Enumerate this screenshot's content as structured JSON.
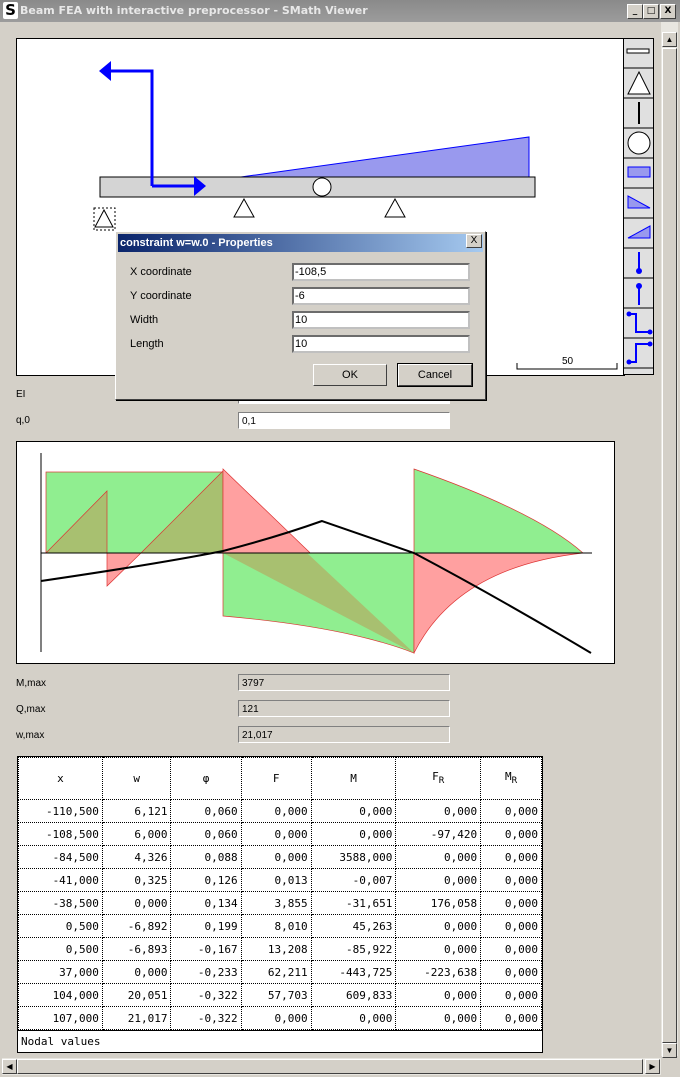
{
  "window": {
    "title": "Beam FEA with interactive preprocessor - SMath Viewer",
    "logo": "S",
    "minimize": "_",
    "maximize": "□",
    "close": "X"
  },
  "toolbar": {
    "tools": [
      "beam-icon",
      "support-triangle-icon",
      "hinge-line-icon",
      "joint-circle-icon",
      "uniform-load-icon",
      "decreasing-load-icon",
      "increasing-load-icon",
      "force-down-icon",
      "force-up-icon",
      "moment-cw-icon",
      "moment-ccw-icon"
    ]
  },
  "preprocessor": {
    "scale_label": "50"
  },
  "dialog": {
    "title": "constraint w=w.0 - Properties",
    "close": "X",
    "fields": [
      {
        "label": "X coordinate",
        "value": "-108,5"
      },
      {
        "label": "Y coordinate",
        "value": "-6"
      },
      {
        "label": "Width",
        "value": "10"
      },
      {
        "label": "Length",
        "value": "10"
      }
    ],
    "ok": "OK",
    "cancel": "Cancel"
  },
  "inputs": {
    "ei_label": "EI",
    "ei_value": "",
    "q0_label": "q,0",
    "q0_value": "0,1"
  },
  "results": {
    "mmax_label": "M,max",
    "mmax_value": "3797",
    "qmax_label": "Q,max",
    "qmax_value": "121",
    "wmax_label": "w,max",
    "wmax_value": "21,017"
  },
  "colors": {
    "load": "#0000ff",
    "positive": "#90ee90",
    "negative": "#ffa0a0",
    "dialog_title": "#0a246a"
  },
  "table": {
    "headers": [
      "x",
      "w",
      "φ",
      "F",
      "M",
      "F",
      "M"
    ],
    "header_subs": [
      "",
      "",
      "",
      "",
      "",
      "R",
      "R"
    ],
    "rows": [
      [
        "-110,500",
        "6,121",
        "0,060",
        "0,000",
        "0,000",
        "0,000",
        "0,000"
      ],
      [
        "-108,500",
        "6,000",
        "0,060",
        "0,000",
        "0,000",
        "-97,420",
        "0,000"
      ],
      [
        "-84,500",
        "4,326",
        "0,088",
        "0,000",
        "3588,000",
        "0,000",
        "0,000"
      ],
      [
        "-41,000",
        "0,325",
        "0,126",
        "0,013",
        "-0,007",
        "0,000",
        "0,000"
      ],
      [
        "-38,500",
        "0,000",
        "0,134",
        "3,855",
        "-31,651",
        "176,058",
        "0,000"
      ],
      [
        "0,500",
        "-6,892",
        "0,199",
        "8,010",
        "45,263",
        "0,000",
        "0,000"
      ],
      [
        "0,500",
        "-6,893",
        "-0,167",
        "13,208",
        "-85,922",
        "0,000",
        "0,000"
      ],
      [
        "37,000",
        "0,000",
        "-0,233",
        "62,211",
        "-443,725",
        "-223,638",
        "0,000"
      ],
      [
        "104,000",
        "20,051",
        "-0,322",
        "57,703",
        "609,833",
        "0,000",
        "0,000"
      ],
      [
        "107,000",
        "21,017",
        "-0,322",
        "0,000",
        "0,000",
        "0,000",
        "0,000"
      ]
    ],
    "caption": "Nodal values"
  }
}
